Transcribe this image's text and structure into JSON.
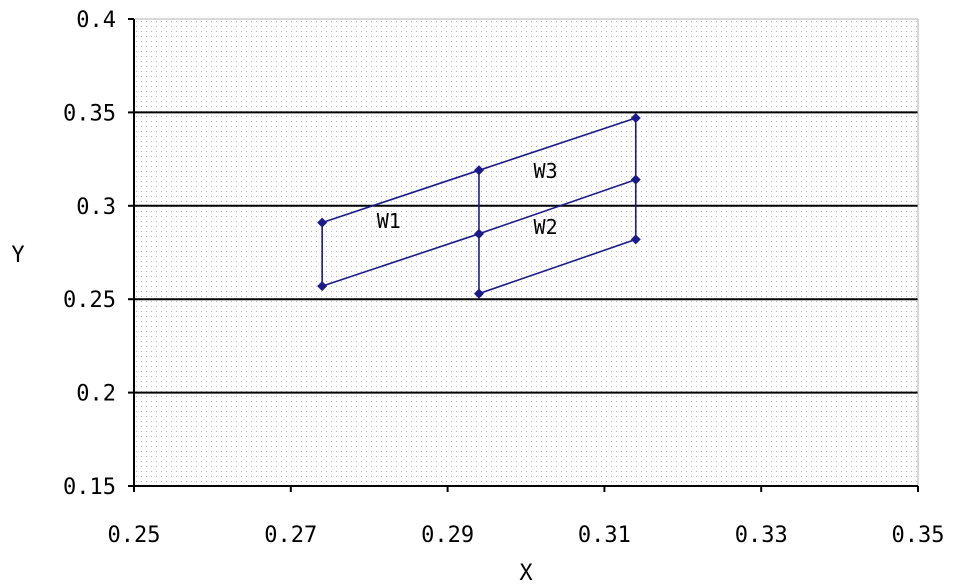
{
  "chart_data": {
    "type": "line",
    "title": "",
    "xlabel": "X",
    "ylabel": "Y",
    "xlim": [
      0.25,
      0.35
    ],
    "ylim": [
      0.15,
      0.4
    ],
    "x_ticks": [
      "0.25",
      "0.27",
      "0.29",
      "0.31",
      "0.33",
      "0.35"
    ],
    "y_ticks": [
      "0.15",
      "0.2",
      "0.25",
      "0.3",
      "0.35",
      "0.4"
    ],
    "x_tick_values": [
      0.25,
      0.27,
      0.29,
      0.31,
      0.33,
      0.35
    ],
    "y_tick_values": [
      0.15,
      0.2,
      0.25,
      0.3,
      0.35,
      0.4
    ],
    "gridlines_y": [
      0.2,
      0.25,
      0.3,
      0.35
    ],
    "grid": true,
    "legend": "none",
    "plot_background": "dotted",
    "series_color": "#1a1a8c",
    "series": [
      {
        "points": [
          [
            0.274,
            0.291
          ],
          [
            0.294,
            0.319
          ],
          [
            0.314,
            0.347
          ]
        ]
      },
      {
        "points": [
          [
            0.274,
            0.257
          ],
          [
            0.294,
            0.285
          ],
          [
            0.314,
            0.314
          ]
        ]
      },
      {
        "points": [
          [
            0.294,
            0.253
          ],
          [
            0.314,
            0.282
          ]
        ]
      },
      {
        "points": [
          [
            0.274,
            0.291
          ],
          [
            0.274,
            0.257
          ]
        ]
      },
      {
        "points": [
          [
            0.294,
            0.319
          ],
          [
            0.294,
            0.285
          ],
          [
            0.294,
            0.253
          ]
        ]
      },
      {
        "points": [
          [
            0.314,
            0.347
          ],
          [
            0.314,
            0.314
          ],
          [
            0.314,
            0.282
          ]
        ]
      }
    ],
    "annotations": [
      {
        "text": "W1",
        "x": 0.2825,
        "y": 0.288
      },
      {
        "text": "W2",
        "x": 0.3025,
        "y": 0.285
      },
      {
        "text": "W3",
        "x": 0.3025,
        "y": 0.315
      }
    ]
  }
}
